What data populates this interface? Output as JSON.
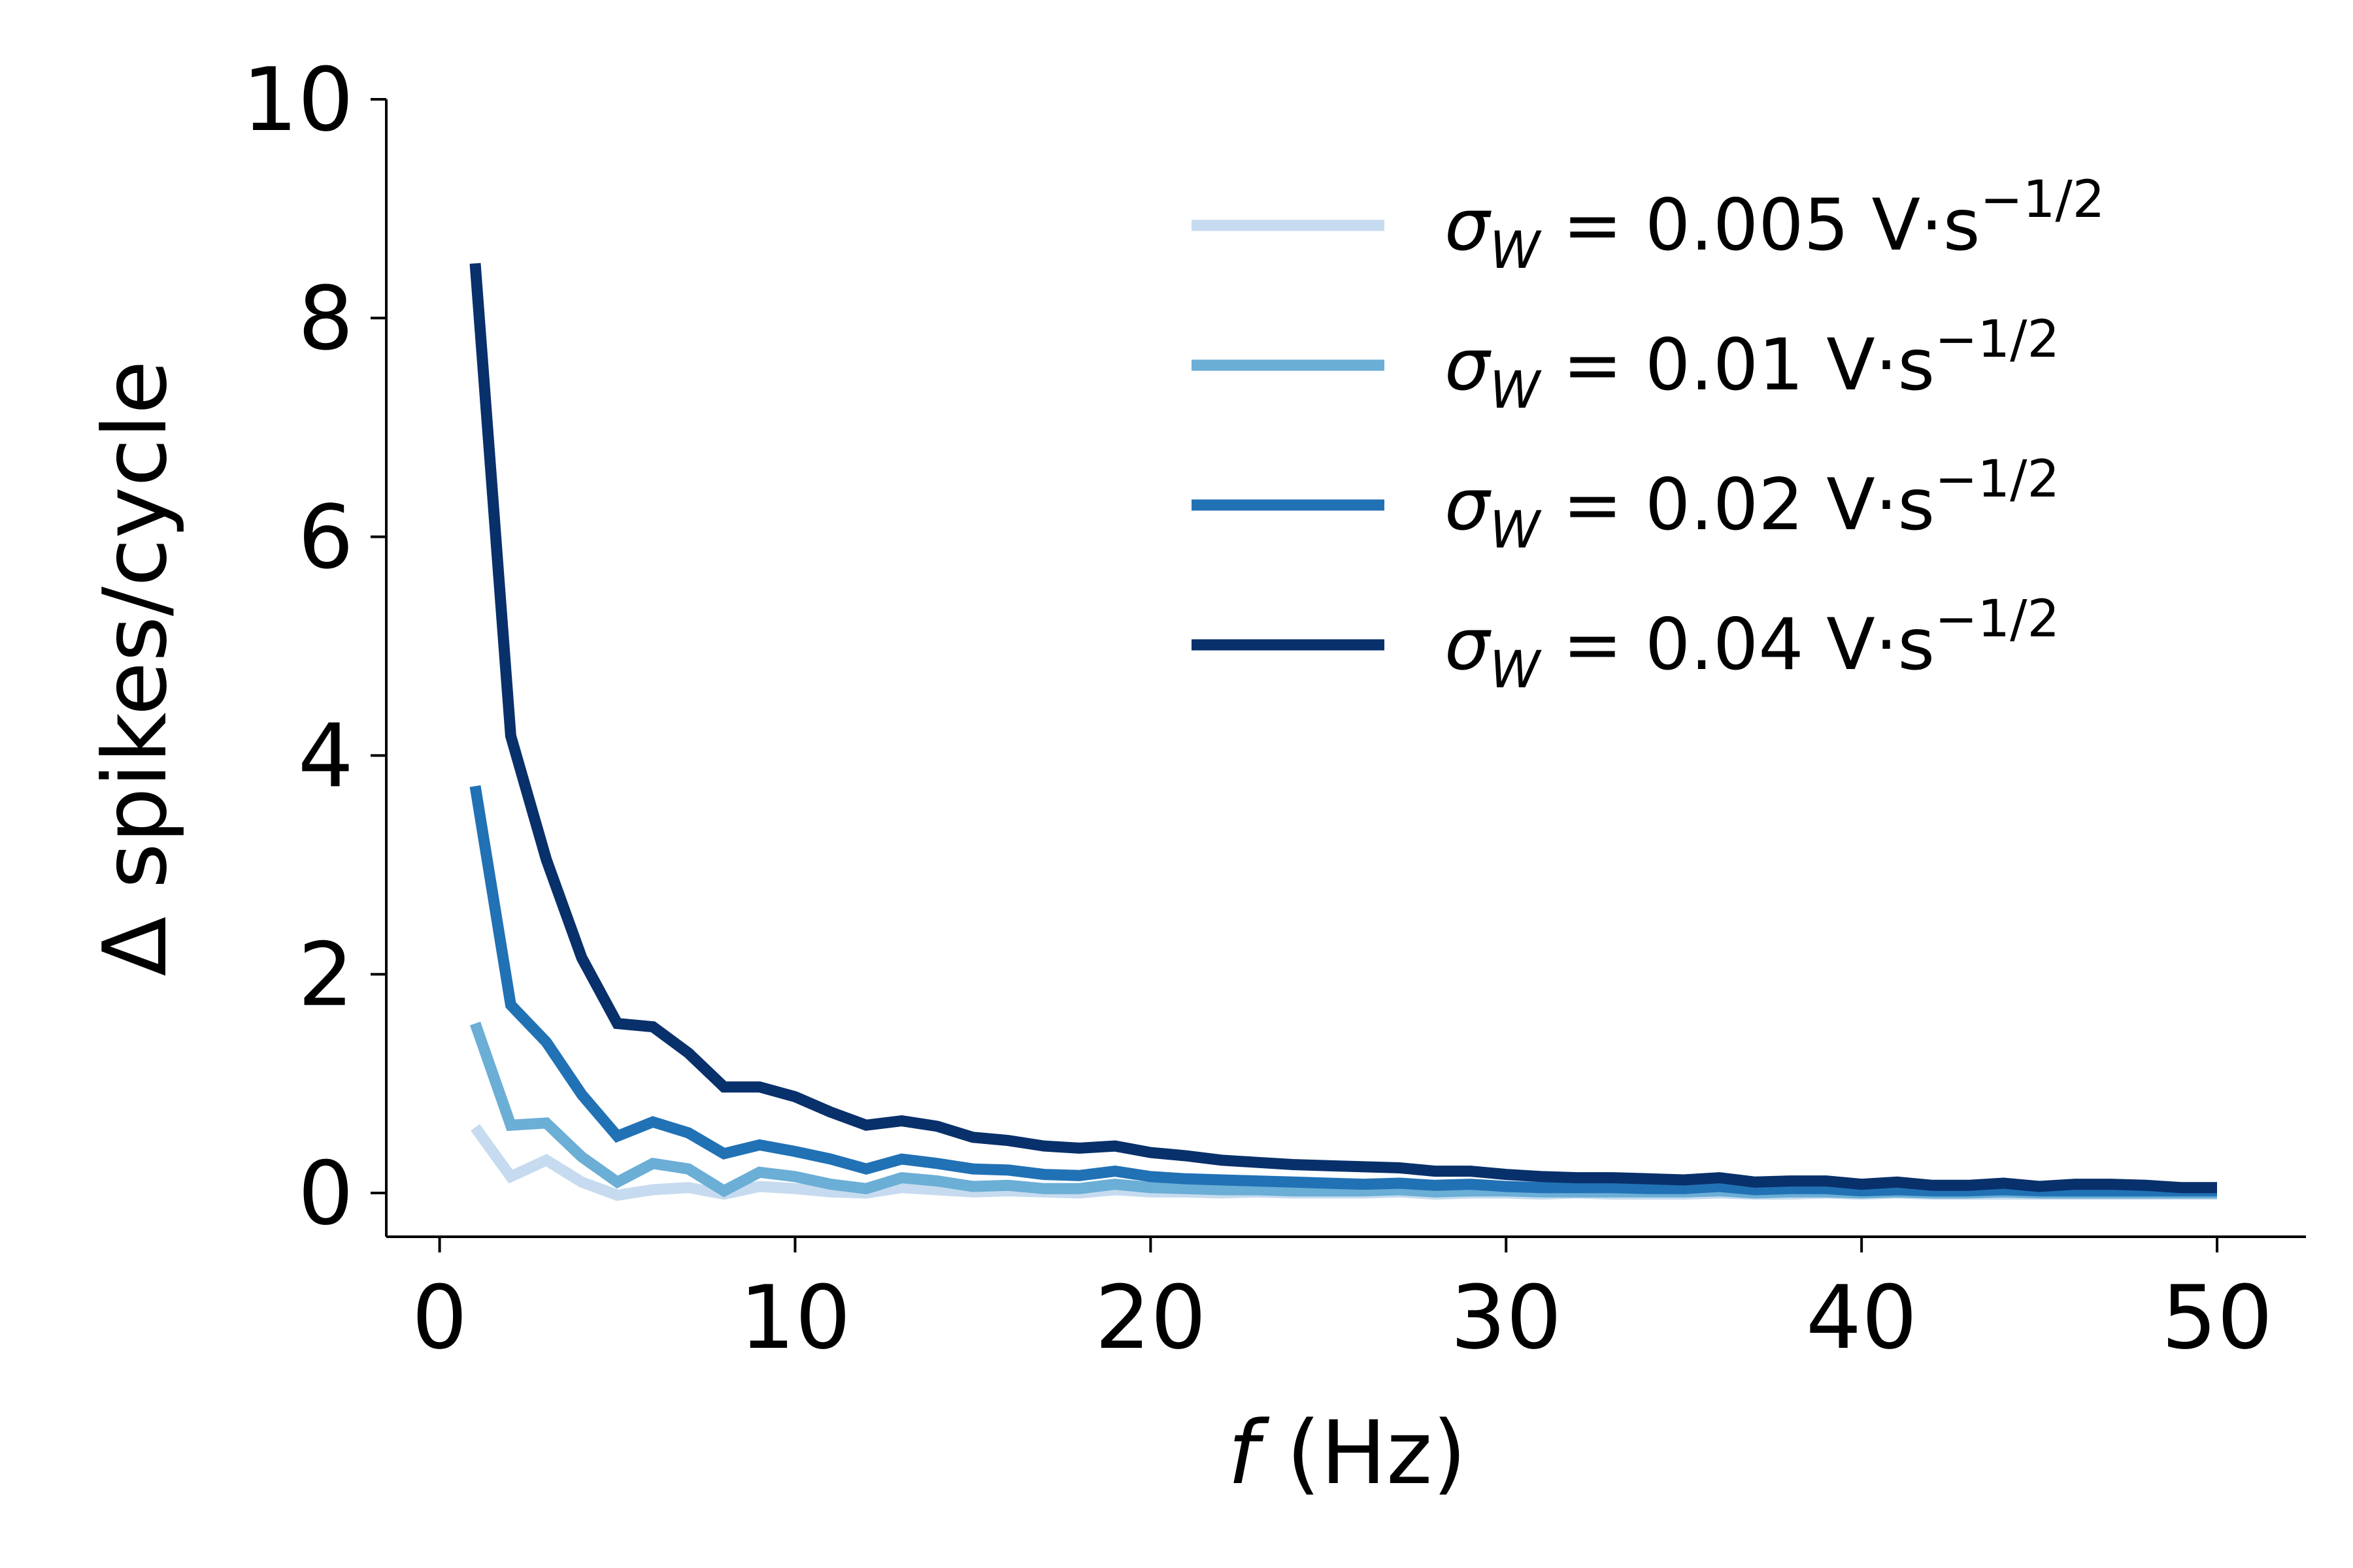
{
  "chart_data": {
    "type": "line",
    "title": "",
    "xlabel": {
      "var": "f",
      "unit": " (Hz)"
    },
    "ylabel": "Δ spikes/cycle",
    "xlim": [
      -1.5,
      52.5
    ],
    "ylim": [
      -0.4,
      10
    ],
    "xticks": [
      0,
      10,
      20,
      30,
      40,
      50
    ],
    "yticks": [
      0,
      2,
      4,
      6,
      8,
      10
    ],
    "grid": false,
    "legend": "top-right",
    "x": [
      1,
      2,
      3,
      4,
      5,
      6,
      7,
      8,
      9,
      10,
      11,
      12,
      13,
      14,
      15,
      16,
      17,
      18,
      19,
      20,
      21,
      22,
      23,
      24,
      25,
      26,
      27,
      28,
      29,
      30,
      31,
      32,
      33,
      34,
      35,
      36,
      37,
      38,
      39,
      40,
      41,
      42,
      43,
      44,
      45,
      46,
      47,
      48,
      49,
      50
    ],
    "series": [
      {
        "name": {
          "prefix": "σ",
          "sub": "W",
          "eq": " = 0.005 V·s",
          "sup": "−1/2"
        },
        "color": "#c6dbef",
        "values": [
          0.6,
          0.15,
          0.3,
          0.1,
          -0.02,
          0.03,
          0.05,
          -0.01,
          0.06,
          0.04,
          0.01,
          0.0,
          0.05,
          0.03,
          0.01,
          0.02,
          0.01,
          0.0,
          0.03,
          0.01,
          0.01,
          0.0,
          0.01,
          0.0,
          0.0,
          0.0,
          0.01,
          -0.01,
          0.0,
          0.0,
          -0.01,
          0.0,
          -0.01,
          -0.01,
          -0.01,
          0.0,
          -0.01,
          -0.01,
          0.0,
          -0.01,
          0.0,
          -0.01,
          -0.01,
          -0.01,
          -0.01,
          -0.01,
          -0.01,
          -0.01,
          -0.01,
          -0.01
        ]
      },
      {
        "name": {
          "prefix": "σ",
          "sub": "W",
          "eq": " = 0.01 V·s",
          "sup": "−1/2"
        },
        "color": "#6baed6",
        "values": [
          1.55,
          0.62,
          0.64,
          0.33,
          0.1,
          0.27,
          0.22,
          0.02,
          0.19,
          0.15,
          0.08,
          0.04,
          0.14,
          0.11,
          0.06,
          0.07,
          0.04,
          0.04,
          0.08,
          0.05,
          0.04,
          0.03,
          0.03,
          0.02,
          0.02,
          0.02,
          0.03,
          0.01,
          0.02,
          0.02,
          0.01,
          0.01,
          0.01,
          0.01,
          0.01,
          0.02,
          0.0,
          0.01,
          0.01,
          0.0,
          0.01,
          0.0,
          0.0,
          0.01,
          0.0,
          0.0,
          0.0,
          0.0,
          0.0,
          0.0
        ]
      },
      {
        "name": {
          "prefix": "σ",
          "sub": "W",
          "eq": " = 0.02 V·s",
          "sup": "−1/2"
        },
        "color": "#2171b5",
        "values": [
          3.72,
          1.72,
          1.38,
          0.9,
          0.52,
          0.65,
          0.55,
          0.36,
          0.44,
          0.38,
          0.31,
          0.22,
          0.31,
          0.27,
          0.22,
          0.21,
          0.17,
          0.16,
          0.2,
          0.15,
          0.13,
          0.12,
          0.11,
          0.1,
          0.09,
          0.08,
          0.09,
          0.07,
          0.08,
          0.06,
          0.05,
          0.05,
          0.05,
          0.04,
          0.04,
          0.06,
          0.03,
          0.04,
          0.04,
          0.02,
          0.03,
          0.02,
          0.02,
          0.03,
          0.02,
          0.02,
          0.02,
          0.02,
          0.02,
          0.02
        ]
      },
      {
        "name": {
          "prefix": "σ",
          "sub": "W",
          "eq": " = 0.04 V·s",
          "sup": "−1/2"
        },
        "color": "#08306b",
        "values": [
          8.5,
          4.18,
          3.05,
          2.15,
          1.55,
          1.52,
          1.28,
          0.97,
          0.97,
          0.88,
          0.74,
          0.62,
          0.66,
          0.61,
          0.51,
          0.48,
          0.43,
          0.41,
          0.43,
          0.37,
          0.34,
          0.3,
          0.28,
          0.26,
          0.25,
          0.24,
          0.23,
          0.2,
          0.2,
          0.17,
          0.15,
          0.14,
          0.14,
          0.13,
          0.12,
          0.14,
          0.1,
          0.11,
          0.11,
          0.08,
          0.1,
          0.07,
          0.07,
          0.09,
          0.06,
          0.08,
          0.08,
          0.07,
          0.05,
          0.05
        ]
      }
    ]
  }
}
